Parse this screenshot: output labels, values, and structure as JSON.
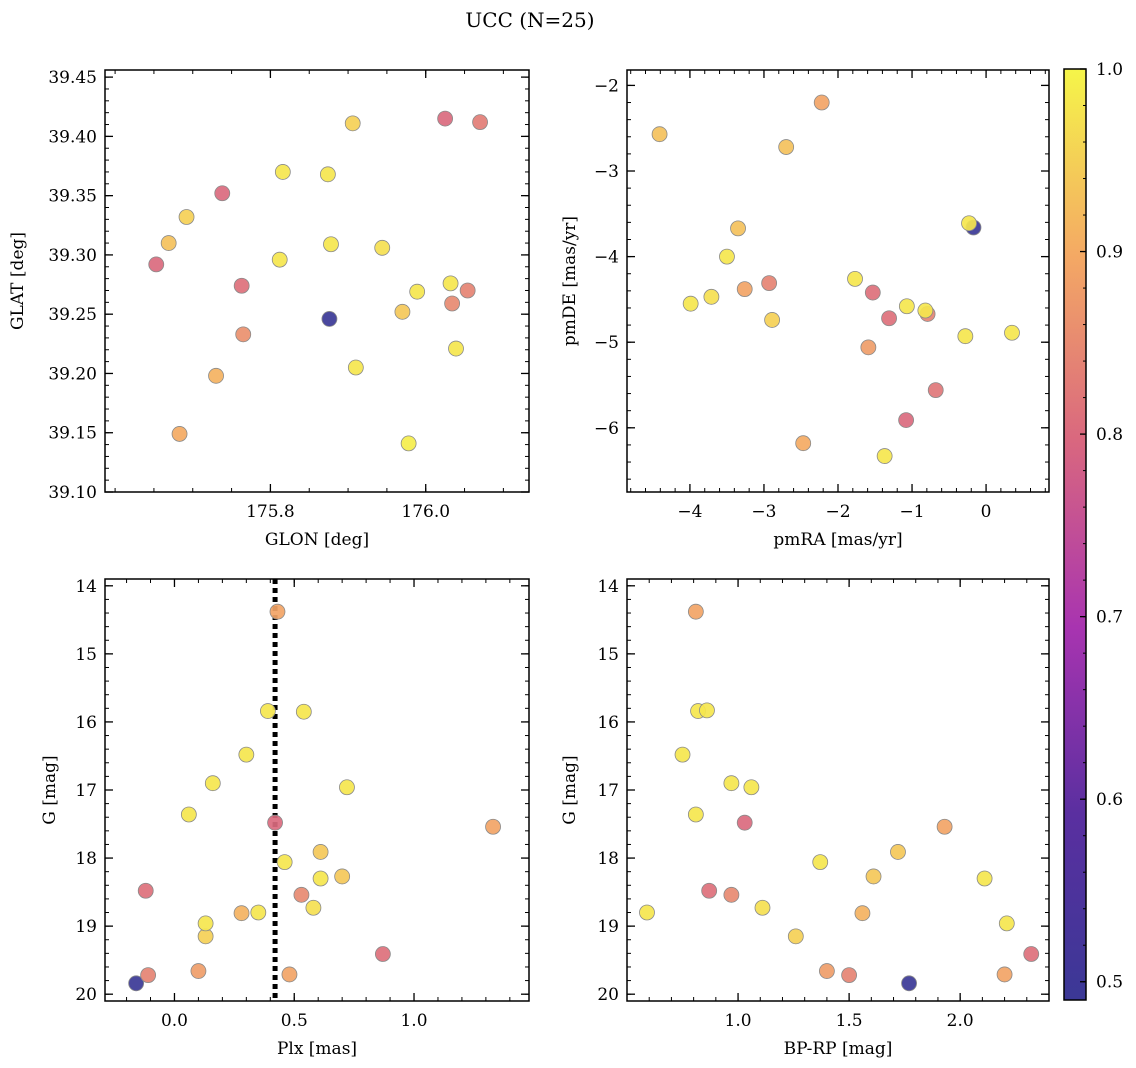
{
  "figure": {
    "title": "UCC (N=25)"
  },
  "colorbar": {
    "range": [
      0.49,
      1.0
    ],
    "ticks": [
      "0.5",
      "0.6",
      "0.7",
      "0.8",
      "0.9",
      "1.0"
    ],
    "colormap": "plasma"
  },
  "chart_data": [
    {
      "type": "scatter",
      "name": "sky",
      "xlabel": "GLON [deg]",
      "ylabel": "GLAT [deg]",
      "xlim": [
        175.587,
        176.133
      ],
      "ylim": [
        39.1,
        39.456
      ],
      "xticks": [
        "175.8",
        "176.0"
      ],
      "yticks": [
        "39.10",
        "39.15",
        "39.20",
        "39.25",
        "39.30",
        "39.35",
        "39.40",
        "39.45"
      ],
      "points": [
        {
          "x": 175.653,
          "y": 39.292,
          "c": 0.8
        },
        {
          "x": 175.669,
          "y": 39.31,
          "c": 0.93
        },
        {
          "x": 175.683,
          "y": 39.149,
          "c": 0.9
        },
        {
          "x": 175.692,
          "y": 39.332,
          "c": 0.95
        },
        {
          "x": 175.73,
          "y": 39.198,
          "c": 0.91
        },
        {
          "x": 175.738,
          "y": 39.352,
          "c": 0.8
        },
        {
          "x": 175.763,
          "y": 39.274,
          "c": 0.81
        },
        {
          "x": 175.765,
          "y": 39.233,
          "c": 0.86
        },
        {
          "x": 175.812,
          "y": 39.296,
          "c": 0.98
        },
        {
          "x": 175.816,
          "y": 39.37,
          "c": 0.98
        },
        {
          "x": 175.874,
          "y": 39.368,
          "c": 0.98
        },
        {
          "x": 175.878,
          "y": 39.309,
          "c": 0.98
        },
        {
          "x": 175.876,
          "y": 39.246,
          "c": 0.49
        },
        {
          "x": 175.906,
          "y": 39.411,
          "c": 0.95
        },
        {
          "x": 175.91,
          "y": 39.205,
          "c": 0.98
        },
        {
          "x": 175.944,
          "y": 39.306,
          "c": 0.97
        },
        {
          "x": 175.97,
          "y": 39.252,
          "c": 0.94
        },
        {
          "x": 175.978,
          "y": 39.141,
          "c": 0.99
        },
        {
          "x": 175.989,
          "y": 39.269,
          "c": 0.98
        },
        {
          "x": 176.025,
          "y": 39.415,
          "c": 0.8
        },
        {
          "x": 176.032,
          "y": 39.276,
          "c": 0.98
        },
        {
          "x": 176.034,
          "y": 39.259,
          "c": 0.85
        },
        {
          "x": 176.039,
          "y": 39.221,
          "c": 0.98
        },
        {
          "x": 176.054,
          "y": 39.27,
          "c": 0.84
        },
        {
          "x": 176.07,
          "y": 39.412,
          "c": 0.83
        }
      ]
    },
    {
      "type": "scatter",
      "name": "proper-motion",
      "xlabel": "pmRA [mas/yr]",
      "ylabel": "pmDE [mas/yr]",
      "xlim": [
        -4.85,
        0.85
      ],
      "ylim": [
        -6.75,
        -1.82
      ],
      "xticks": [
        "−4",
        "−3",
        "−2",
        "−1",
        "0"
      ],
      "xtick_values": [
        -4,
        -3,
        -2,
        -1,
        0
      ],
      "yticks": [
        "−2",
        "−3",
        "−4",
        "−5",
        "−6"
      ],
      "ytick_values": [
        -2,
        -3,
        -4,
        -5,
        -6
      ],
      "points": [
        {
          "x": -4.41,
          "y": -2.57,
          "c": 0.93
        },
        {
          "x": -3.99,
          "y": -4.55,
          "c": 0.98
        },
        {
          "x": -3.71,
          "y": -4.47,
          "c": 0.97
        },
        {
          "x": -3.5,
          "y": -4.0,
          "c": 0.98
        },
        {
          "x": -3.35,
          "y": -3.67,
          "c": 0.93
        },
        {
          "x": -3.26,
          "y": -4.38,
          "c": 0.89
        },
        {
          "x": -2.93,
          "y": -4.31,
          "c": 0.84
        },
        {
          "x": -2.89,
          "y": -4.74,
          "c": 0.95
        },
        {
          "x": -2.7,
          "y": -2.72,
          "c": 0.93
        },
        {
          "x": -2.47,
          "y": -6.18,
          "c": 0.9
        },
        {
          "x": -2.22,
          "y": -2.2,
          "c": 0.89
        },
        {
          "x": -1.77,
          "y": -4.26,
          "c": 0.98
        },
        {
          "x": -1.59,
          "y": -5.06,
          "c": 0.88
        },
        {
          "x": -1.53,
          "y": -4.42,
          "c": 0.81
        },
        {
          "x": -1.37,
          "y": -6.33,
          "c": 0.98
        },
        {
          "x": -1.31,
          "y": -4.72,
          "c": 0.81
        },
        {
          "x": -1.07,
          "y": -4.58,
          "c": 0.98
        },
        {
          "x": -1.08,
          "y": -5.91,
          "c": 0.8
        },
        {
          "x": -0.82,
          "y": -4.63,
          "c": 0.98
        },
        {
          "x": -0.79,
          "y": -4.67,
          "c": 0.84
        },
        {
          "x": -0.68,
          "y": -5.56,
          "c": 0.82
        },
        {
          "x": -0.28,
          "y": -4.93,
          "c": 0.98
        },
        {
          "x": -0.23,
          "y": -3.61,
          "c": 0.98
        },
        {
          "x": -0.17,
          "y": -3.66,
          "c": 0.49
        },
        {
          "x": 0.35,
          "y": -4.89,
          "c": 0.98
        }
      ]
    },
    {
      "type": "scatter",
      "name": "plx-mag",
      "xlabel": "Plx [mas]",
      "ylabel": "G [mag]",
      "xlim": [
        -0.29,
        1.48
      ],
      "ylim": [
        20.1,
        13.9
      ],
      "xticks": [
        "0.0",
        "0.5",
        "1.0"
      ],
      "xtick_values": [
        0,
        0.5,
        1.0
      ],
      "yticks": [
        "14",
        "15",
        "16",
        "17",
        "18",
        "19",
        "20"
      ],
      "ytick_values": [
        14,
        15,
        16,
        17,
        18,
        19,
        20
      ],
      "vline": 0.42,
      "points": [
        {
          "x": 0.43,
          "y": 14.38,
          "c": 0.89
        },
        {
          "x": 0.39,
          "y": 15.84,
          "c": 0.98
        },
        {
          "x": 0.54,
          "y": 15.85,
          "c": 0.98
        },
        {
          "x": 0.3,
          "y": 16.48,
          "c": 0.98
        },
        {
          "x": 0.16,
          "y": 16.9,
          "c": 0.98
        },
        {
          "x": 0.72,
          "y": 16.96,
          "c": 0.98
        },
        {
          "x": 0.06,
          "y": 17.36,
          "c": 0.98
        },
        {
          "x": 0.42,
          "y": 17.48,
          "c": 0.8
        },
        {
          "x": 1.33,
          "y": 17.54,
          "c": 0.89
        },
        {
          "x": 0.61,
          "y": 17.91,
          "c": 0.94
        },
        {
          "x": 0.46,
          "y": 18.06,
          "c": 0.98
        },
        {
          "x": 0.61,
          "y": 18.3,
          "c": 0.98
        },
        {
          "x": 0.7,
          "y": 18.27,
          "c": 0.94
        },
        {
          "x": -0.12,
          "y": 18.48,
          "c": 0.81
        },
        {
          "x": 0.53,
          "y": 18.54,
          "c": 0.85
        },
        {
          "x": 0.58,
          "y": 18.73,
          "c": 0.97
        },
        {
          "x": 0.28,
          "y": 18.81,
          "c": 0.91
        },
        {
          "x": 0.35,
          "y": 18.8,
          "c": 0.98
        },
        {
          "x": 0.13,
          "y": 18.96,
          "c": 0.98
        },
        {
          "x": 0.13,
          "y": 19.15,
          "c": 0.95
        },
        {
          "x": 0.87,
          "y": 19.41,
          "c": 0.81
        },
        {
          "x": 0.1,
          "y": 19.66,
          "c": 0.88
        },
        {
          "x": -0.11,
          "y": 19.72,
          "c": 0.84
        },
        {
          "x": 0.48,
          "y": 19.71,
          "c": 0.89
        },
        {
          "x": -0.16,
          "y": 19.84,
          "c": 0.49
        }
      ]
    },
    {
      "type": "scatter",
      "name": "cmd",
      "xlabel": "BP-RP [mag]",
      "ylabel": "G [mag]",
      "xlim": [
        0.5,
        2.4
      ],
      "ylim": [
        20.1,
        13.9
      ],
      "xticks": [
        "1.0",
        "1.5",
        "2.0"
      ],
      "xtick_values": [
        1.0,
        1.5,
        2.0
      ],
      "yticks": [
        "14",
        "15",
        "16",
        "17",
        "18",
        "19",
        "20"
      ],
      "ytick_values": [
        14,
        15,
        16,
        17,
        18,
        19,
        20
      ],
      "points": [
        {
          "x": 0.81,
          "y": 14.38,
          "c": 0.89
        },
        {
          "x": 0.82,
          "y": 15.84,
          "c": 0.98
        },
        {
          "x": 0.86,
          "y": 15.83,
          "c": 0.98
        },
        {
          "x": 0.75,
          "y": 16.48,
          "c": 0.98
        },
        {
          "x": 0.97,
          "y": 16.9,
          "c": 0.98
        },
        {
          "x": 1.06,
          "y": 16.96,
          "c": 0.98
        },
        {
          "x": 0.81,
          "y": 17.36,
          "c": 0.98
        },
        {
          "x": 1.03,
          "y": 17.48,
          "c": 0.8
        },
        {
          "x": 1.93,
          "y": 17.54,
          "c": 0.89
        },
        {
          "x": 1.72,
          "y": 17.91,
          "c": 0.94
        },
        {
          "x": 1.37,
          "y": 18.06,
          "c": 0.98
        },
        {
          "x": 2.11,
          "y": 18.3,
          "c": 0.98
        },
        {
          "x": 1.61,
          "y": 18.27,
          "c": 0.94
        },
        {
          "x": 0.87,
          "y": 18.48,
          "c": 0.81
        },
        {
          "x": 0.97,
          "y": 18.54,
          "c": 0.85
        },
        {
          "x": 1.11,
          "y": 18.73,
          "c": 0.97
        },
        {
          "x": 1.56,
          "y": 18.81,
          "c": 0.91
        },
        {
          "x": 0.59,
          "y": 18.8,
          "c": 0.98
        },
        {
          "x": 2.21,
          "y": 18.96,
          "c": 0.98
        },
        {
          "x": 1.26,
          "y": 19.15,
          "c": 0.95
        },
        {
          "x": 2.32,
          "y": 19.41,
          "c": 0.81
        },
        {
          "x": 1.4,
          "y": 19.66,
          "c": 0.88
        },
        {
          "x": 1.5,
          "y": 19.72,
          "c": 0.84
        },
        {
          "x": 2.2,
          "y": 19.71,
          "c": 0.89
        },
        {
          "x": 1.77,
          "y": 19.84,
          "c": 0.49
        }
      ]
    }
  ]
}
